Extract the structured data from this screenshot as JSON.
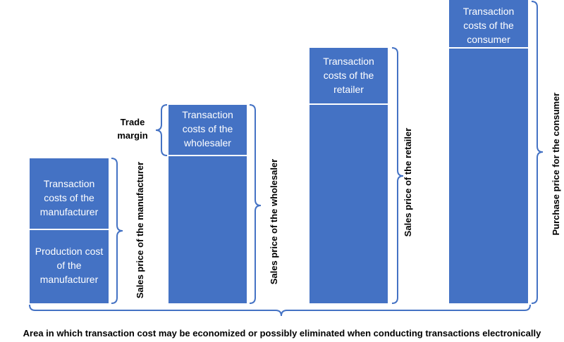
{
  "columns": [
    {
      "segments": [
        {
          "label": "Transaction costs of the manufacturer"
        },
        {
          "label": "Production cost of the manufacturer"
        }
      ],
      "bracket_label": "Sales price of the manufacturer"
    },
    {
      "segments": [
        {
          "label": "Transaction costs of the wholesaler"
        }
      ],
      "bracket_label": "Sales price of the wholesaler"
    },
    {
      "segments": [
        {
          "label": "Transaction costs of the retailer"
        }
      ],
      "bracket_label": "Sales price of the retailer"
    },
    {
      "segments": [
        {
          "label": "Transaction costs of the consumer"
        }
      ],
      "bracket_label": "Purchase price for the consumer"
    }
  ],
  "trade_margin_label": "Trade margin",
  "bottom_label": "Area in which transaction cost may be economized or possibly eliminated when conducting transactions electronically",
  "colors": {
    "bar": "#4472C4",
    "bracket": "#4472C4",
    "divider": "#ffffff"
  }
}
